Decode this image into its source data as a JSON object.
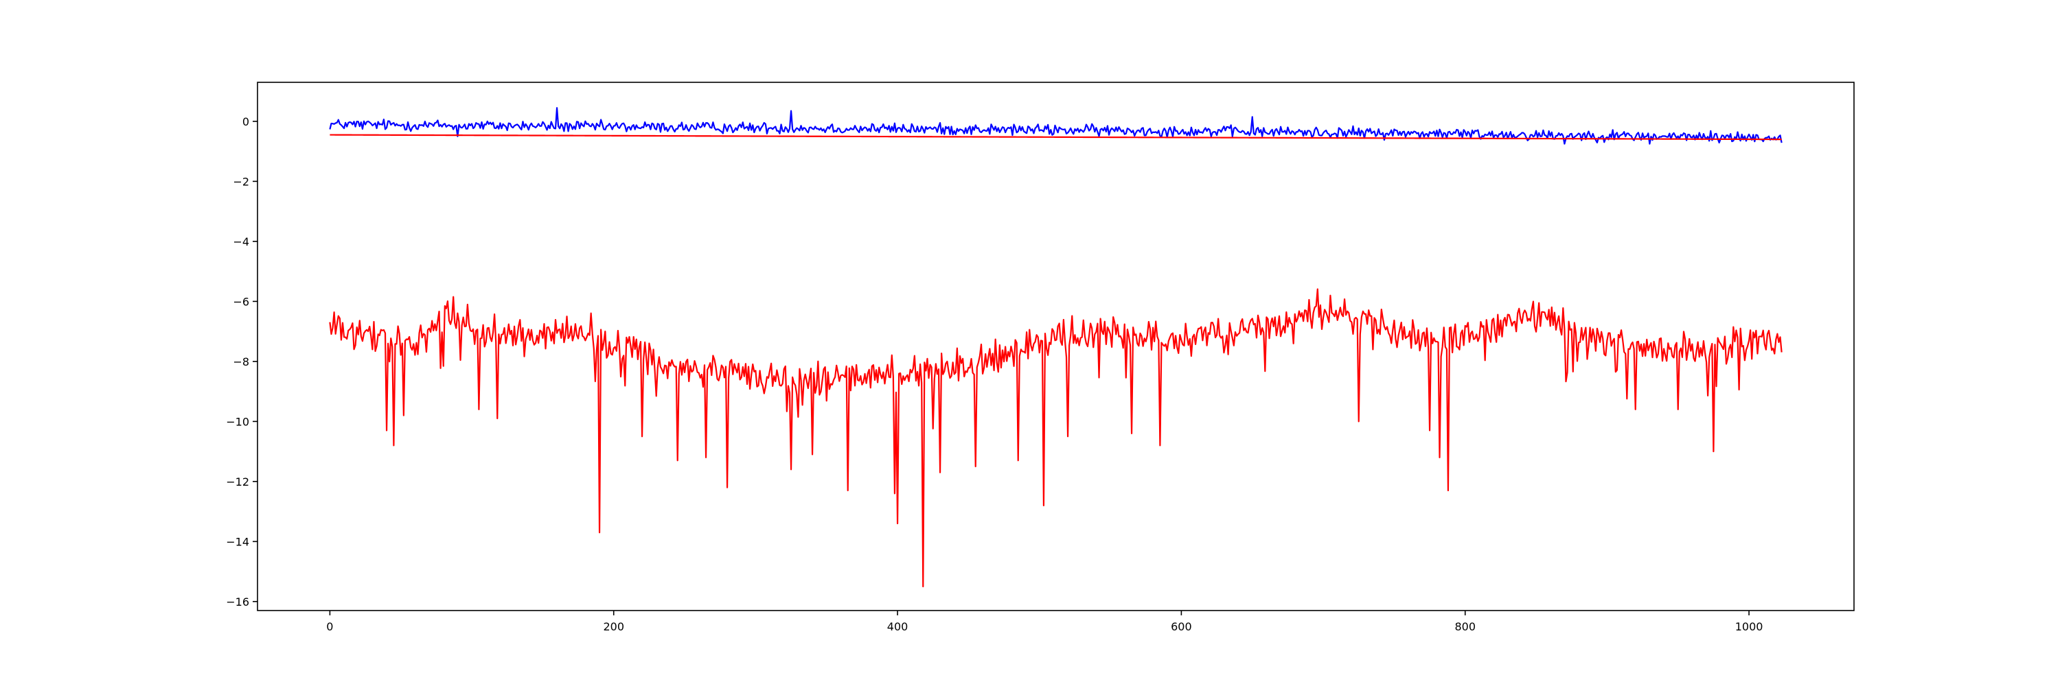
{
  "chart_data": {
    "type": "line",
    "title": "",
    "xlabel": "",
    "ylabel": "",
    "xlim": [
      -51,
      1074
    ],
    "ylim": [
      -16.3,
      1.3
    ],
    "xticks": [
      0,
      200,
      400,
      600,
      800,
      1000
    ],
    "yticks": [
      0,
      -2,
      -4,
      -6,
      -8,
      -10,
      -12,
      -14,
      -16
    ],
    "grid": false,
    "legend": "none",
    "n_points": 1024,
    "series": [
      {
        "color": "#0000ff",
        "style": "noisy",
        "keypoints": [
          [
            0,
            -0.1
          ],
          [
            200,
            -0.18
          ],
          [
            400,
            -0.25
          ],
          [
            600,
            -0.32
          ],
          [
            800,
            -0.42
          ],
          [
            900,
            -0.48
          ],
          [
            1023,
            -0.55
          ]
        ],
        "noise_std": 0.09,
        "spikes": [
          [
            160,
            0.45
          ],
          [
            325,
            0.35
          ],
          [
            650,
            0.15
          ],
          [
            90,
            -0.5
          ],
          [
            870,
            -0.75
          ],
          [
            930,
            -0.75
          ]
        ]
      },
      {
        "color": "#ff0000",
        "style": "straight",
        "keypoints": [
          [
            0,
            -0.45
          ],
          [
            1023,
            -0.6
          ]
        ]
      },
      {
        "color": "#ff0000",
        "style": "noisy",
        "keypoints": [
          [
            0,
            -6.8
          ],
          [
            20,
            -7.2
          ],
          [
            60,
            -7.3
          ],
          [
            80,
            -6.4
          ],
          [
            110,
            -7.0
          ],
          [
            150,
            -7.2
          ],
          [
            180,
            -7.0
          ],
          [
            240,
            -8.2
          ],
          [
            320,
            -8.6
          ],
          [
            400,
            -8.5
          ],
          [
            460,
            -8.0
          ],
          [
            540,
            -7.0
          ],
          [
            600,
            -7.3
          ],
          [
            650,
            -7.0
          ],
          [
            700,
            -6.3
          ],
          [
            730,
            -6.5
          ],
          [
            760,
            -7.2
          ],
          [
            800,
            -7.2
          ],
          [
            850,
            -6.4
          ],
          [
            890,
            -7.3
          ],
          [
            930,
            -7.6
          ],
          [
            980,
            -7.5
          ],
          [
            1023,
            -7.3
          ]
        ],
        "noise_std": 0.28,
        "spikes": [
          [
            40,
            -10.3
          ],
          [
            45,
            -10.8
          ],
          [
            52,
            -9.8
          ],
          [
            105,
            -9.6
          ],
          [
            118,
            -9.9
          ],
          [
            190,
            -13.7
          ],
          [
            220,
            -10.5
          ],
          [
            245,
            -11.3
          ],
          [
            265,
            -11.2
          ],
          [
            280,
            -12.2
          ],
          [
            325,
            -11.6
          ],
          [
            340,
            -11.1
          ],
          [
            365,
            -12.3
          ],
          [
            398,
            -12.4
          ],
          [
            400,
            -13.4
          ],
          [
            418,
            -15.5
          ],
          [
            430,
            -11.7
          ],
          [
            455,
            -11.5
          ],
          [
            485,
            -11.3
          ],
          [
            503,
            -12.8
          ],
          [
            520,
            -10.5
          ],
          [
            565,
            -10.4
          ],
          [
            585,
            -10.8
          ],
          [
            725,
            -10.0
          ],
          [
            775,
            -10.3
          ],
          [
            782,
            -11.2
          ],
          [
            788,
            -12.3
          ],
          [
            920,
            -9.6
          ],
          [
            950,
            -9.6
          ],
          [
            975,
            -11.0
          ]
        ]
      }
    ]
  }
}
